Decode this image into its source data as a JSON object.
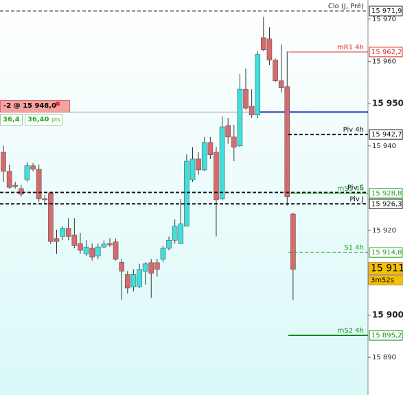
{
  "chart_data": {
    "type": "candlestick",
    "up_color": "#3ee0de",
    "down_color": "#d96a6c",
    "open": [
      15938.5,
      15934.0,
      15930.7,
      15929.9,
      15932.0,
      15935.3,
      15934.5,
      15927.5,
      15928.8,
      15918.1,
      15918.6,
      15920.5,
      15918.9,
      15916.9,
      15914.5,
      15915.8,
      15914.0,
      15916.1,
      15916.9,
      15917.3,
      15912.5,
      15909.6,
      15906.7,
      15906.7,
      15910.4,
      15912.4,
      15912.4,
      15913.2,
      15915.8,
      15917.7,
      15916.9,
      15921.0,
      15932.0,
      15936.9,
      15934.3,
      15940.8,
      15938.5,
      15927.5,
      15944.8,
      15942.1,
      15940.0,
      15953.4,
      15949.4,
      15947.3,
      15965.6,
      15965.3,
      15960.3,
      15955.4,
      15954.0,
      15923.9
    ],
    "high": [
      15940.1,
      15935.6,
      15931.5,
      15930.7,
      15936.1,
      15935.9,
      15935.6,
      15928.3,
      15929.1,
      15920.2,
      15921.0,
      15922.9,
      15922.9,
      15919.4,
      15917.7,
      15916.9,
      15916.9,
      15917.7,
      15918.2,
      15918.1,
      15913.2,
      15910.4,
      15910.8,
      15912.1,
      15912.5,
      15913.2,
      15913.2,
      15916.4,
      15918.6,
      15922.6,
      15927.5,
      15938.0,
      15939.7,
      15938.5,
      15942.1,
      15942.1,
      15939.8,
      15947.0,
      15946.6,
      15945.0,
      15957.0,
      15958.3,
      15953.4,
      15962.4,
      15970.5,
      15968.1,
      15960.7,
      15964.0,
      15962.4,
      15924.2
    ],
    "low": [
      15931.5,
      15929.9,
      15929.9,
      15928.0,
      15931.5,
      15934.0,
      15926.7,
      15926.2,
      15916.8,
      15914.5,
      15917.7,
      15917.7,
      15915.8,
      15914.5,
      15914.0,
      15912.9,
      15913.2,
      15915.8,
      15916.1,
      15912.9,
      15903.6,
      15905.1,
      15905.6,
      15906.4,
      15907.2,
      15904.1,
      15909.1,
      15912.5,
      15915.3,
      15916.9,
      15916.9,
      15921.0,
      15931.5,
      15933.2,
      15934.0,
      15936.9,
      15918.6,
      15927.2,
      15940.5,
      15936.4,
      15939.7,
      15948.6,
      15946.6,
      15946.6,
      15962.4,
      15959.1,
      15955.1,
      15952.6,
      15925.9,
      15903.5
    ],
    "close": [
      15934.0,
      15930.2,
      15930.4,
      15928.6,
      15935.3,
      15934.5,
      15927.5,
      15927.2,
      15917.4,
      15917.4,
      15920.5,
      15918.6,
      15916.4,
      15915.3,
      15916.1,
      15913.7,
      15916.1,
      15916.8,
      15916.6,
      15913.2,
      15910.4,
      15906.4,
      15909.6,
      15910.8,
      15912.1,
      15909.9,
      15910.8,
      15915.8,
      15917.7,
      15921.0,
      15921.6,
      15936.4,
      15936.9,
      15934.3,
      15940.8,
      15937.9,
      15927.2,
      15944.5,
      15942.1,
      15939.7,
      15953.4,
      15948.9,
      15947.3,
      15961.6,
      15962.7,
      15960.3,
      15955.4,
      15953.8,
      15928.0,
      15910.8
    ],
    "ylim": [
      15881.1,
      15974.5
    ],
    "yticks": [
      {
        "value": 15970,
        "label": "15 970"
      },
      {
        "value": 15960,
        "label": "15 960"
      },
      {
        "value": 15950,
        "label": "15 950"
      },
      {
        "value": 15940,
        "label": "15 940"
      },
      {
        "value": 15920,
        "label": "15 920"
      },
      {
        "value": 15900,
        "label": "15 900"
      },
      {
        "value": 15890,
        "label": "15 890"
      }
    ],
    "bold_ticks": [
      15950,
      15900
    ],
    "levels": [
      {
        "name": "Clo (J, Pré)",
        "value": 15971.9,
        "value_label": "15 971,9",
        "color": "#222222",
        "dash": true,
        "width": 1,
        "span": "full"
      },
      {
        "name": "mR1 4h",
        "value": 15962.2,
        "value_label": "15 962,2",
        "color": "#dd2222",
        "dash": false,
        "width": 1,
        "span": "right"
      },
      {
        "name": "Piv 4h",
        "value": 15942.7,
        "value_label": "15 942,7",
        "color": "#111111",
        "dash": true,
        "width": 2,
        "span": "right"
      },
      {
        "name": "Piv S",
        "value": 15929.0,
        "color": "#111111",
        "dash": true,
        "width": 2,
        "span": "full"
      },
      {
        "name": "mS1 4h",
        "value": 15928.8,
        "value_label": "15 928,8",
        "color": "#229922",
        "dash": false,
        "width": 1,
        "span": "right"
      },
      {
        "name": "Piv J",
        "value": 15926.3,
        "value_label": "15 926,3",
        "color": "#111111",
        "dash": true,
        "width": 2,
        "span": "full"
      },
      {
        "name": "S1 4h",
        "value": 15914.8,
        "value_label": "15 914,8",
        "color": "#229922",
        "dash": true,
        "width": 1,
        "span": "right"
      },
      {
        "name": "mS2 4h",
        "value": 15895.2,
        "value_label": "15 895,2",
        "color": "#118811",
        "dash": false,
        "width": 2,
        "span": "right"
      }
    ],
    "order_line": {
      "value": 15948.0,
      "color": "#1133bb"
    },
    "current": {
      "value": 15911,
      "label": "15 911,",
      "timer": "3m52s"
    }
  },
  "order": {
    "label": "-2 @ 15 948,0",
    "pnl": "36,4",
    "pnl_pts": "36,40",
    "unit": "pts"
  }
}
